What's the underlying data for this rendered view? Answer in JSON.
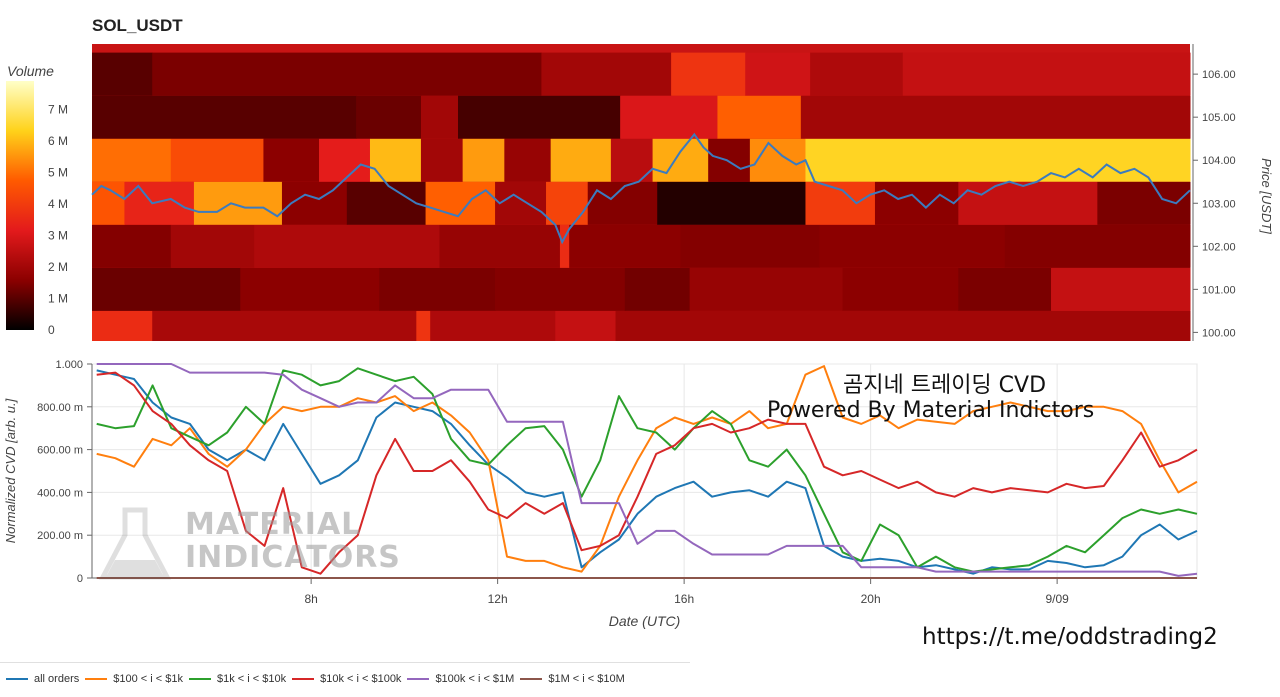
{
  "title": "SOL_USDT",
  "watermark": {
    "line1": "곰지네 트레이딩 CVD",
    "line2": "Powered By Material Indictors",
    "logo_line1": "MATERIAL",
    "logo_line2": "INDICATORS"
  },
  "url_text": "https://t.me/oddstrading2",
  "chart_data": [
    {
      "type": "heatmap",
      "title": "SOL_USDT",
      "colorbar": {
        "label": "Volume",
        "ticks": [
          "0",
          "1 M",
          "2 M",
          "3 M",
          "4 M",
          "5 M",
          "6 M",
          "7 M"
        ],
        "range": [
          0,
          7.9
        ],
        "colors": [
          "#000000",
          "#8b0000",
          "#e31a1c",
          "#ff5a00",
          "#ffd21a",
          "#ffffc8"
        ]
      },
      "y_axis": {
        "label": "Price [USDT]",
        "range": [
          99.8,
          106.7
        ],
        "ticks": [
          "100.00",
          "101.00",
          "102.00",
          "103.00",
          "104.00",
          "105.00",
          "106.00"
        ],
        "bands": [
          100,
          101,
          102,
          103,
          104,
          105,
          106
        ]
      },
      "x_range_hours": [
        3.3,
        27.0
      ],
      "segments": [
        {
          "band": 100,
          "values": [
            [
              3.3,
              4.6,
              3.6
            ],
            [
              4.6,
              10.3,
              2.1
            ],
            [
              10.3,
              10.6,
              3.8
            ],
            [
              10.6,
              13.3,
              2.2
            ],
            [
              13.3,
              14.6,
              2.6
            ],
            [
              14.6,
              27,
              2.0
            ]
          ]
        },
        {
          "band": 101,
          "values": [
            [
              3.3,
              6.5,
              1.2
            ],
            [
              6.5,
              9.5,
              1.6
            ],
            [
              9.5,
              12.0,
              1.4
            ],
            [
              12.0,
              14.8,
              1.5
            ],
            [
              14.8,
              16.2,
              1.3
            ],
            [
              16.2,
              19.5,
              1.8
            ],
            [
              19.5,
              22.0,
              1.6
            ],
            [
              22.0,
              24.0,
              1.4
            ],
            [
              24.0,
              27,
              2.6
            ]
          ]
        },
        {
          "band": 102,
          "values": [
            [
              3.3,
              5.0,
              1.5
            ],
            [
              5.0,
              6.8,
              2.0
            ],
            [
              6.8,
              10.8,
              2.2
            ],
            [
              10.8,
              13.4,
              1.8
            ],
            [
              13.4,
              13.6,
              3.6
            ],
            [
              13.6,
              16.0,
              1.6
            ],
            [
              16.0,
              19.0,
              1.5
            ],
            [
              19.0,
              23.0,
              1.6
            ],
            [
              23.0,
              27,
              1.5
            ]
          ]
        },
        {
          "band": 103,
          "values": [
            [
              3.3,
              4.0,
              4.6
            ],
            [
              4.0,
              5.5,
              3.4
            ],
            [
              5.5,
              7.4,
              5.6
            ],
            [
              7.4,
              8.8,
              1.6
            ],
            [
              8.8,
              10.5,
              1.0
            ],
            [
              10.5,
              12.0,
              4.8
            ],
            [
              12.0,
              13.1,
              2.0
            ],
            [
              13.1,
              14.0,
              4.2
            ],
            [
              14.0,
              15.5,
              1.5
            ],
            [
              15.5,
              18.7,
              0.4
            ],
            [
              18.7,
              20.2,
              4.0
            ],
            [
              20.2,
              22.0,
              1.6
            ],
            [
              22.0,
              25.0,
              2.6
            ],
            [
              25.0,
              27,
              1.4
            ]
          ]
        },
        {
          "band": 104,
          "values": [
            [
              3.3,
              5.0,
              5.0
            ],
            [
              5.0,
              7.0,
              4.4
            ],
            [
              7.0,
              8.2,
              1.6
            ],
            [
              8.2,
              9.3,
              3.2
            ],
            [
              9.3,
              10.4,
              6.0
            ],
            [
              10.4,
              11.3,
              2.0
            ],
            [
              11.3,
              12.2,
              5.6
            ],
            [
              12.2,
              13.2,
              1.8
            ],
            [
              13.2,
              14.5,
              5.8
            ],
            [
              14.5,
              15.4,
              2.4
            ],
            [
              15.4,
              16.6,
              5.8
            ],
            [
              16.6,
              17.5,
              1.5
            ],
            [
              17.5,
              18.7,
              5.4
            ],
            [
              18.7,
              27,
              6.4
            ]
          ]
        },
        {
          "band": 105,
          "values": [
            [
              3.3,
              9.0,
              1.0
            ],
            [
              9.0,
              10.4,
              1.2
            ],
            [
              10.4,
              11.2,
              2.0
            ],
            [
              11.2,
              14.7,
              0.8
            ],
            [
              14.7,
              16.8,
              3.0
            ],
            [
              16.8,
              18.6,
              4.8
            ],
            [
              18.6,
              27,
              2.0
            ]
          ]
        },
        {
          "band": 106,
          "values": [
            [
              3.3,
              4.6,
              1.0
            ],
            [
              4.6,
              13.0,
              1.4
            ],
            [
              13.0,
              15.8,
              2.0
            ],
            [
              15.8,
              17.4,
              3.8
            ],
            [
              17.4,
              18.8,
              2.8
            ],
            [
              18.8,
              20.8,
              2.2
            ],
            [
              20.8,
              27,
              2.6
            ]
          ]
        }
      ],
      "price_series": {
        "name": "price",
        "color": "#3b7bbf",
        "x": [
          3.3,
          3.5,
          3.7,
          4.0,
          4.3,
          4.6,
          5.0,
          5.3,
          5.6,
          6.0,
          6.3,
          6.6,
          7.0,
          7.3,
          7.6,
          7.9,
          8.2,
          8.5,
          8.8,
          9.1,
          9.4,
          9.7,
          10.0,
          10.3,
          10.6,
          10.9,
          11.2,
          11.5,
          11.8,
          12.1,
          12.4,
          12.7,
          13.0,
          13.3,
          13.45,
          13.6,
          13.9,
          14.2,
          14.5,
          14.8,
          15.1,
          15.4,
          15.7,
          16.0,
          16.3,
          16.5,
          16.7,
          17.0,
          17.3,
          17.6,
          17.9,
          18.2,
          18.5,
          18.7,
          18.9,
          19.2,
          19.5,
          19.8,
          20.1,
          20.4,
          20.7,
          21.0,
          21.3,
          21.6,
          21.9,
          22.2,
          22.5,
          22.8,
          23.1,
          23.4,
          23.7,
          24.0,
          24.3,
          24.6,
          24.9,
          25.2,
          25.5,
          25.8,
          26.1,
          26.4,
          26.7,
          27.0
        ],
        "y": [
          103.2,
          103.4,
          103.3,
          103.1,
          103.4,
          103.0,
          103.1,
          102.9,
          102.8,
          102.8,
          103.0,
          102.9,
          102.9,
          102.7,
          103.0,
          103.2,
          103.1,
          103.3,
          103.6,
          103.9,
          103.8,
          103.4,
          103.2,
          103.0,
          102.9,
          102.8,
          102.7,
          103.1,
          103.3,
          103.0,
          103.2,
          103.0,
          102.8,
          102.5,
          102.1,
          102.4,
          102.8,
          103.3,
          103.1,
          103.4,
          103.5,
          103.8,
          103.7,
          104.2,
          104.6,
          104.3,
          104.1,
          104.0,
          103.8,
          103.9,
          104.4,
          104.1,
          103.9,
          104.0,
          103.5,
          103.4,
          103.3,
          103.0,
          103.2,
          103.3,
          103.1,
          103.2,
          102.9,
          103.2,
          103.0,
          103.3,
          103.2,
          103.4,
          103.5,
          103.4,
          103.5,
          103.7,
          103.6,
          103.8,
          103.6,
          103.9,
          103.7,
          103.8,
          103.6,
          103.1,
          103.0,
          103.3
        ]
      }
    },
    {
      "type": "line",
      "title": "",
      "xlabel": "Date (UTC)",
      "ylabel": "Normalized CVD [arb. u.]",
      "xlim": [
        3.3,
        27.0
      ],
      "ylim": [
        0,
        1.0
      ],
      "x_ticks": [
        {
          "x": 8,
          "label": "8h"
        },
        {
          "x": 12,
          "label": "12h"
        },
        {
          "x": 16,
          "label": "16h"
        },
        {
          "x": 20,
          "label": "20h"
        },
        {
          "x": 24,
          "label": "9/09"
        }
      ],
      "y_ticks": [
        "0",
        "200.00 m",
        "400.00 m",
        "600.00 m",
        "800.00 m",
        "1.000"
      ],
      "grid": true,
      "legend_position": "bottom-left",
      "x": [
        3.4,
        3.8,
        4.2,
        4.6,
        5.0,
        5.4,
        5.8,
        6.2,
        6.6,
        7.0,
        7.4,
        7.8,
        8.2,
        8.6,
        9.0,
        9.4,
        9.8,
        10.2,
        10.6,
        11.0,
        11.4,
        11.8,
        12.2,
        12.6,
        13.0,
        13.4,
        13.8,
        14.2,
        14.6,
        15.0,
        15.4,
        15.8,
        16.2,
        16.6,
        17.0,
        17.4,
        17.8,
        18.2,
        18.6,
        19.0,
        19.4,
        19.8,
        20.2,
        20.6,
        21.0,
        21.4,
        21.8,
        22.2,
        22.6,
        23.0,
        23.4,
        23.8,
        24.2,
        24.6,
        25.0,
        25.4,
        25.8,
        26.2,
        26.6,
        27.0
      ],
      "series": [
        {
          "name": "all orders",
          "color": "#1f77b4",
          "values": [
            0.97,
            0.95,
            0.93,
            0.82,
            0.75,
            0.72,
            0.6,
            0.55,
            0.6,
            0.55,
            0.72,
            0.58,
            0.44,
            0.48,
            0.55,
            0.75,
            0.82,
            0.8,
            0.78,
            0.72,
            0.62,
            0.53,
            0.47,
            0.4,
            0.38,
            0.4,
            0.05,
            0.12,
            0.18,
            0.3,
            0.38,
            0.42,
            0.45,
            0.38,
            0.4,
            0.41,
            0.38,
            0.45,
            0.42,
            0.15,
            0.1,
            0.08,
            0.09,
            0.08,
            0.05,
            0.06,
            0.04,
            0.02,
            0.05,
            0.04,
            0.04,
            0.08,
            0.07,
            0.05,
            0.06,
            0.1,
            0.2,
            0.25,
            0.18,
            0.22
          ]
        },
        {
          "name": "$100 < i < $1k",
          "color": "#ff7f0e",
          "values": [
            0.58,
            0.56,
            0.52,
            0.65,
            0.62,
            0.7,
            0.58,
            0.52,
            0.6,
            0.72,
            0.8,
            0.78,
            0.8,
            0.8,
            0.84,
            0.82,
            0.85,
            0.78,
            0.82,
            0.76,
            0.68,
            0.55,
            0.1,
            0.08,
            0.08,
            0.05,
            0.03,
            0.15,
            0.38,
            0.55,
            0.7,
            0.75,
            0.72,
            0.75,
            0.72,
            0.78,
            0.7,
            0.72,
            0.95,
            0.99,
            0.75,
            0.72,
            0.76,
            0.7,
            0.74,
            0.73,
            0.72,
            0.78,
            0.8,
            0.82,
            0.8,
            0.78,
            0.78,
            0.8,
            0.8,
            0.78,
            0.72,
            0.55,
            0.4,
            0.45
          ]
        },
        {
          "name": "$1k < i < $10k",
          "color": "#2ca02c",
          "values": [
            0.72,
            0.7,
            0.71,
            0.9,
            0.7,
            0.66,
            0.62,
            0.68,
            0.8,
            0.72,
            0.97,
            0.95,
            0.9,
            0.92,
            0.98,
            0.95,
            0.92,
            0.94,
            0.86,
            0.65,
            0.55,
            0.53,
            0.62,
            0.7,
            0.71,
            0.6,
            0.38,
            0.55,
            0.85,
            0.7,
            0.68,
            0.6,
            0.7,
            0.78,
            0.72,
            0.55,
            0.52,
            0.6,
            0.48,
            0.3,
            0.12,
            0.08,
            0.25,
            0.2,
            0.05,
            0.1,
            0.05,
            0.03,
            0.04,
            0.05,
            0.06,
            0.1,
            0.15,
            0.12,
            0.2,
            0.28,
            0.32,
            0.3,
            0.32,
            0.3
          ]
        },
        {
          "name": "$10k < i < $100k",
          "color": "#d62728",
          "values": [
            0.95,
            0.96,
            0.9,
            0.78,
            0.72,
            0.62,
            0.55,
            0.5,
            0.22,
            0.15,
            0.42,
            0.05,
            0.02,
            0.12,
            0.2,
            0.48,
            0.65,
            0.5,
            0.5,
            0.55,
            0.45,
            0.32,
            0.28,
            0.35,
            0.3,
            0.35,
            0.13,
            0.15,
            0.2,
            0.38,
            0.58,
            0.62,
            0.7,
            0.72,
            0.68,
            0.7,
            0.74,
            0.72,
            0.72,
            0.52,
            0.48,
            0.5,
            0.46,
            0.42,
            0.45,
            0.4,
            0.38,
            0.42,
            0.4,
            0.42,
            0.41,
            0.4,
            0.44,
            0.42,
            0.43,
            0.55,
            0.68,
            0.52,
            0.55,
            0.6
          ]
        },
        {
          "name": "$100k < i < $1M",
          "color": "#9467bd",
          "values": [
            1.0,
            1.0,
            1.0,
            1.0,
            1.0,
            0.96,
            0.96,
            0.96,
            0.96,
            0.96,
            0.95,
            0.88,
            0.84,
            0.8,
            0.82,
            0.82,
            0.9,
            0.84,
            0.84,
            0.88,
            0.88,
            0.88,
            0.73,
            0.73,
            0.73,
            0.73,
            0.35,
            0.35,
            0.35,
            0.16,
            0.22,
            0.22,
            0.16,
            0.11,
            0.11,
            0.11,
            0.11,
            0.15,
            0.15,
            0.15,
            0.15,
            0.05,
            0.05,
            0.05,
            0.05,
            0.03,
            0.03,
            0.03,
            0.03,
            0.03,
            0.03,
            0.03,
            0.03,
            0.03,
            0.03,
            0.03,
            0.03,
            0.03,
            0.01,
            0.02
          ]
        },
        {
          "name": "$1M < i < $10M",
          "color": "#8c564b",
          "values": [
            0,
            0,
            0,
            0,
            0,
            0,
            0,
            0,
            0,
            0,
            0,
            0,
            0,
            0,
            0,
            0,
            0,
            0,
            0,
            0,
            0,
            0,
            0,
            0,
            0,
            0,
            0,
            0,
            0,
            0,
            0,
            0,
            0,
            0,
            0,
            0,
            0,
            0,
            0,
            0,
            0,
            0,
            0,
            0,
            0,
            0,
            0,
            0,
            0,
            0,
            0,
            0,
            0,
            0,
            0,
            0,
            0,
            0,
            0,
            0
          ]
        }
      ]
    }
  ]
}
